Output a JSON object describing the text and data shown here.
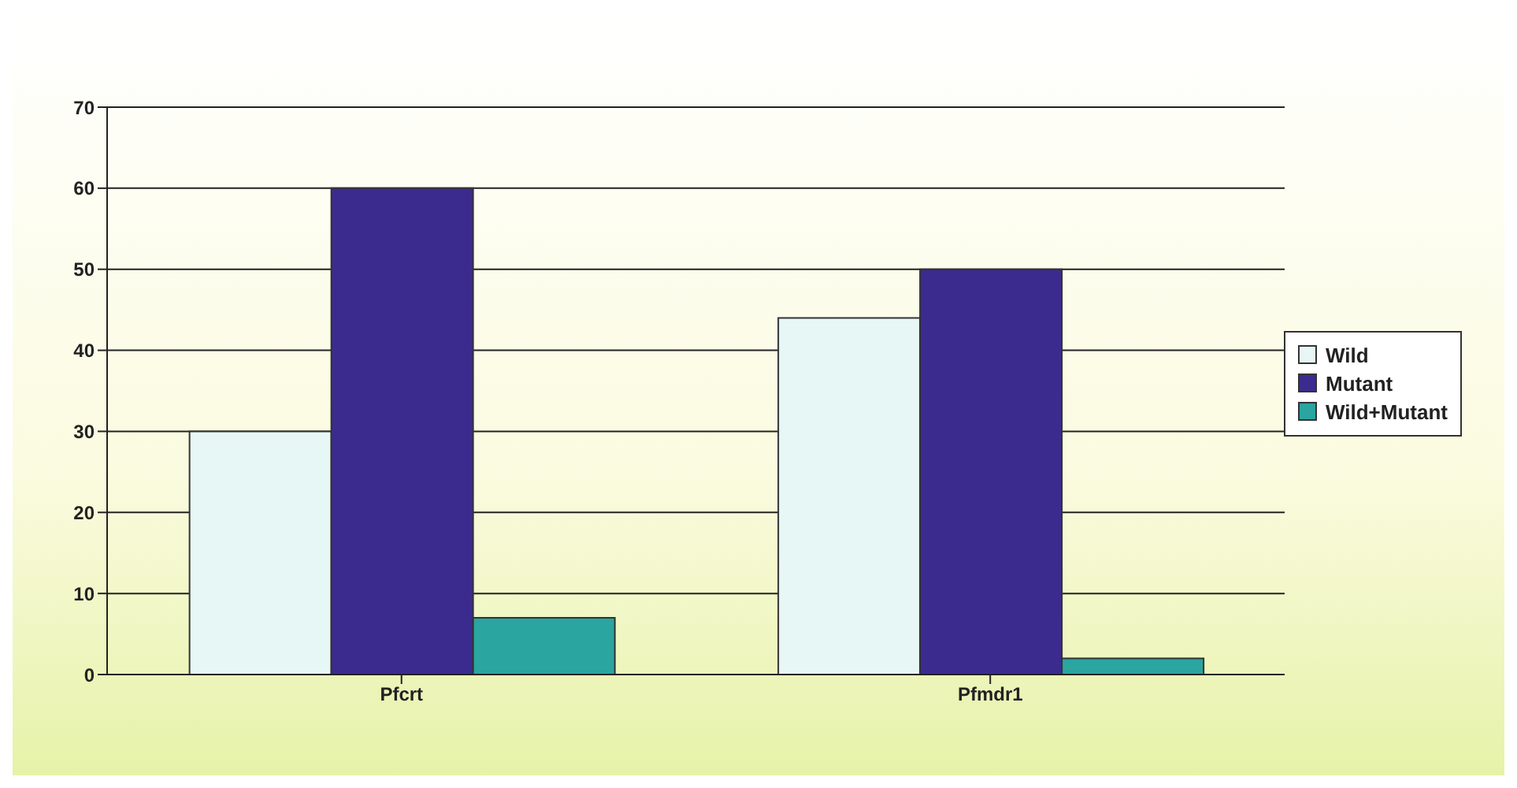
{
  "chart_data": {
    "type": "bar",
    "categories": [
      "Pfcrt",
      "Pfmdr1"
    ],
    "series": [
      {
        "name": "Wild",
        "color": "#e6f7f5",
        "values": [
          30,
          44
        ]
      },
      {
        "name": "Mutant",
        "color": "#3b2b8f",
        "values": [
          60,
          50
        ]
      },
      {
        "name": "Wild+Mutant",
        "color": "#2aa5a0",
        "values": [
          7,
          2
        ]
      }
    ],
    "ylim": [
      0,
      70
    ],
    "yticks": [
      0,
      10,
      20,
      30,
      40,
      50,
      60,
      70
    ],
    "grid": "y",
    "legend": "right"
  }
}
